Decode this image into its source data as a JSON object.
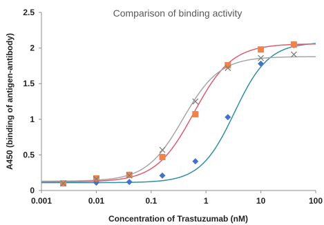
{
  "chart_data": {
    "type": "scatter",
    "title": "Comparison of binding activity",
    "xlabel": "Concentration of Trastuzumab (nM)",
    "ylabel": "A450 (binding of antigen-antibody)",
    "x_scale": "log",
    "xlim": [
      0.001,
      100
    ],
    "ylim": [
      0,
      2.5
    ],
    "x_ticks": [
      0.001,
      0.01,
      0.1,
      1,
      10,
      100
    ],
    "x_tick_labels": [
      "0.001",
      "0.01",
      "0.1",
      "1",
      "10",
      "100"
    ],
    "y_ticks": [
      0,
      0.5,
      1,
      1.5,
      2,
      2.5
    ],
    "y_tick_labels": [
      "0",
      "0.5",
      "1",
      "1.5",
      "2",
      "2.5"
    ],
    "grid": false,
    "legend": "none",
    "series": [
      {
        "marker": "diamond",
        "color": "#4472c4",
        "fit_color": "#2e8fa6",
        "x": [
          0.0025,
          0.01,
          0.04,
          0.16,
          0.64,
          2.5,
          10,
          40
        ],
        "y": [
          0.1,
          0.11,
          0.12,
          0.21,
          0.41,
          1.03,
          1.78,
          2.04
        ],
        "fit": {
          "bottom": 0.11,
          "top": 2.08,
          "ec50": 3.3,
          "hill": 1.4
        }
      },
      {
        "marker": "square",
        "color": "#f0834a",
        "fit_color": "#e05a6e",
        "x": [
          0.0025,
          0.01,
          0.04,
          0.16,
          0.64,
          2.5,
          10,
          40
        ],
        "y": [
          0.1,
          0.17,
          0.22,
          0.47,
          1.07,
          1.76,
          1.98,
          2.05
        ],
        "fit": {
          "bottom": 0.12,
          "top": 2.06,
          "ec50": 0.6,
          "hill": 1.25
        }
      },
      {
        "marker": "x",
        "color": "#7f7f7f",
        "fit_color": "#a6a6a6",
        "x": [
          0.0025,
          0.01,
          0.04,
          0.16,
          0.64,
          2.5,
          10,
          40
        ],
        "y": [
          0.1,
          0.16,
          0.21,
          0.57,
          1.25,
          1.72,
          1.86,
          1.91
        ],
        "fit": {
          "bottom": 0.13,
          "top": 1.88,
          "ec50": 0.38,
          "hill": 1.3
        }
      }
    ]
  }
}
